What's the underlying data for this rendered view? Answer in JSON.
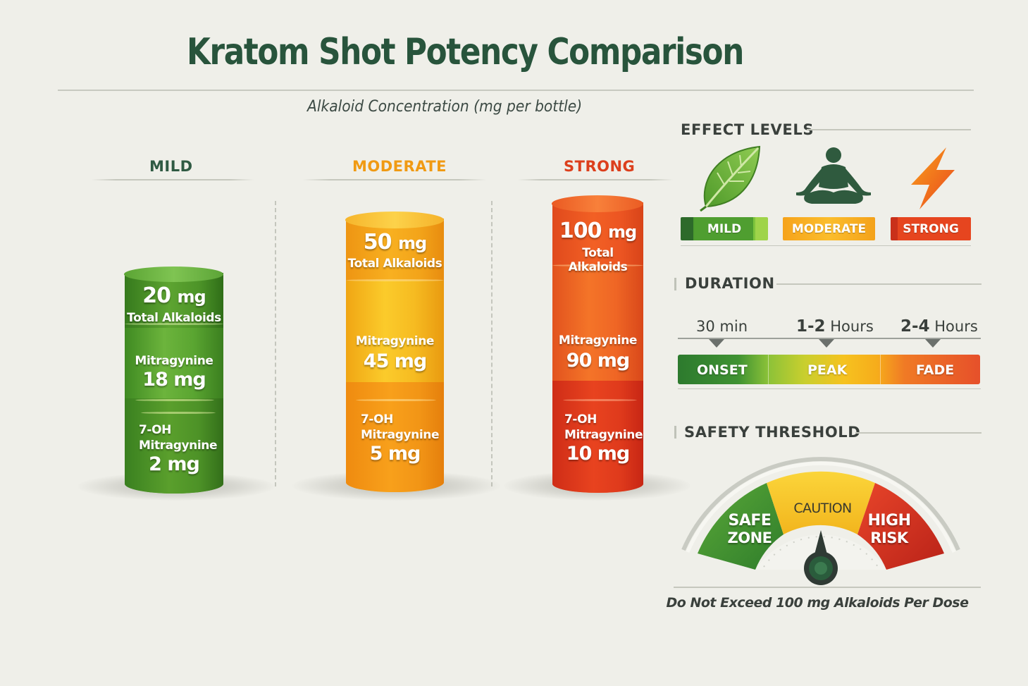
{
  "title": "Kratom Shot Potency Comparison",
  "subtitle": "Alkaloid Concentration (mg per bottle)",
  "colors": {
    "mild": "#4e9a2c",
    "moderate": "#f29a11",
    "strong": "#e4471d",
    "title": "#28543c"
  },
  "levels": [
    {
      "name": "MILD",
      "total_value": "20",
      "total_unit": "mg",
      "total_label": "Total Alkaloids",
      "mitragynine_label": "Mitragynine",
      "mitragynine_value": "18 mg",
      "oh_label_1": "7-OH",
      "oh_label_2": "Mitragynine",
      "oh_value": "2 mg"
    },
    {
      "name": "MODERATE",
      "total_value": "50",
      "total_unit": "mg",
      "total_label": "Total Alkaloids",
      "mitragynine_label": "Mitragynine",
      "mitragynine_value": "45 mg",
      "oh_label_1": "7-OH",
      "oh_label_2": "Mitragynine",
      "oh_value": "5 mg"
    },
    {
      "name": "STRONG",
      "total_value": "100",
      "total_unit": "mg",
      "total_label": "Total Alkaloids",
      "mitragynine_label": "Mitragynine",
      "mitragynine_value": "90 mg",
      "oh_label_1": "7-OH",
      "oh_label_2": "Mitragynine",
      "oh_value": "10 mg"
    }
  ],
  "effect_levels": {
    "title": "EFFECT LEVELS",
    "items": [
      {
        "label": "MILD",
        "icon": "leaf-icon"
      },
      {
        "label": "MODERATE",
        "icon": "meditation-icon"
      },
      {
        "label": "STRONG",
        "icon": "lightning-icon"
      }
    ]
  },
  "duration": {
    "title": "DURATION",
    "times": [
      {
        "num": "30",
        "unit": "min"
      },
      {
        "num": "1-2",
        "unit": "Hours"
      },
      {
        "num": "2-4",
        "unit": "Hours"
      }
    ],
    "phases": [
      "ONSET",
      "PEAK",
      "FADE"
    ]
  },
  "safety": {
    "title": "SAFETY THRESHOLD",
    "zones": [
      {
        "line1": "SAFE",
        "line2": "ZONE"
      },
      {
        "line1": "CAUTION",
        "line2": ""
      },
      {
        "line1": "HIGH",
        "line2": "RISK"
      }
    ],
    "note": "Do Not Exceed 100 mg Alkaloids Per Dose"
  }
}
